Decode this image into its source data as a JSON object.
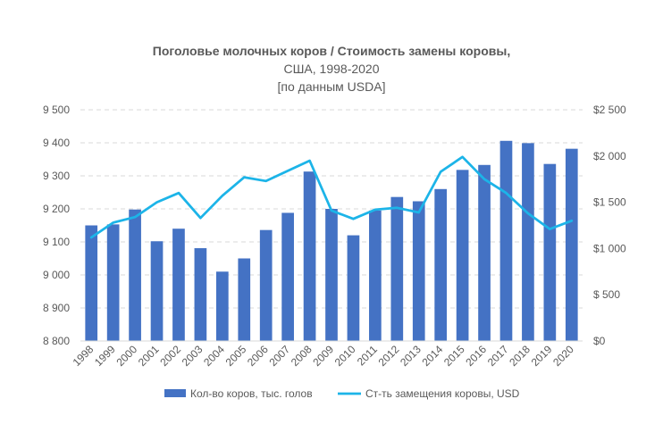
{
  "chart_data": {
    "type": "bar+line",
    "title_line1": "Поголовье молочных коров / Стоимость замены коровы,",
    "title_line2": "США, 1998-2020",
    "title_line3": "[по данным USDA]",
    "categories": [
      "1998",
      "1999",
      "2000",
      "2001",
      "2002",
      "2003",
      "2004",
      "2005",
      "2006",
      "2007",
      "2008",
      "2009",
      "2010",
      "2011",
      "2012",
      "2013",
      "2014",
      "2015",
      "2016",
      "2017",
      "2018",
      "2019",
      "2020"
    ],
    "series": [
      {
        "name": "Кол-во коров, тыс. голов",
        "type": "bar",
        "axis": "left",
        "color": "#4472C4",
        "values": [
          9150,
          9153,
          9198,
          9102,
          9140,
          9081,
          9010,
          9050,
          9136,
          9188,
          9313,
          9200,
          9120,
          9195,
          9236,
          9223,
          9260,
          9318,
          9333,
          9406,
          9399,
          9336,
          9382
        ]
      },
      {
        "name": "Ст-ть замещения коровы, USD",
        "type": "line",
        "axis": "right",
        "color": "#1CB4E8",
        "values": [
          1120,
          1280,
          1340,
          1500,
          1600,
          1330,
          1570,
          1770,
          1730,
          1840,
          1950,
          1410,
          1320,
          1420,
          1440,
          1390,
          1830,
          1990,
          1750,
          1600,
          1380,
          1210,
          1300
        ]
      }
    ],
    "y_left": {
      "min": 8800,
      "max": 9500,
      "step": 100,
      "labels": [
        "8 800",
        "8 900",
        "9 000",
        "9 100",
        "9 200",
        "9 300",
        "9 400",
        "9 500"
      ]
    },
    "y_right": {
      "min": 0,
      "max": 2500,
      "step": 500,
      "labels": [
        "$0",
        "$ 500",
        "$1 000",
        "$1 500",
        "$2 000",
        "$2 500"
      ]
    },
    "grid": true,
    "legend_position": "bottom"
  }
}
